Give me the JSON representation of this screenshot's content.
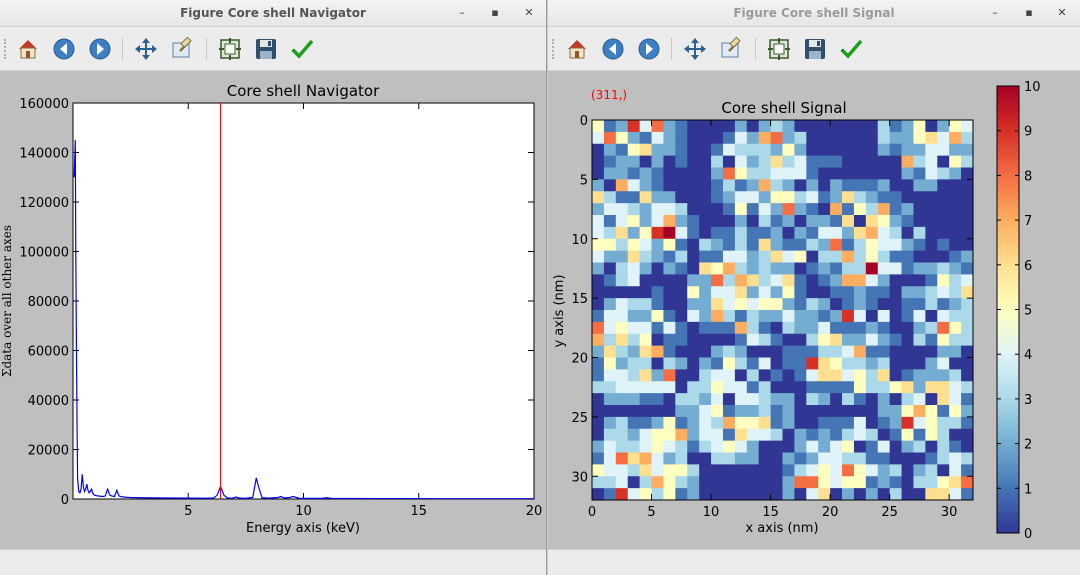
{
  "windows": {
    "navigator": {
      "title": "Figure Core shell Navigator",
      "controls": {
        "minimize": "–",
        "maximize": "▪",
        "close": "✕"
      }
    },
    "signal": {
      "title": "Figure Core shell Signal",
      "controls": {
        "minimize": "–",
        "maximize": "▪",
        "close": "✕"
      }
    }
  },
  "toolbar_icons": [
    "home-icon",
    "back-arrow-icon",
    "forward-arrow-icon",
    "pan-move-icon",
    "zoom-rect-icon",
    "configure-subplots-icon",
    "save-icon",
    "edit-check-icon"
  ],
  "colors": {
    "line": "#0000ff",
    "indicator": "#ff0000",
    "coord_text": "#ff0000"
  },
  "chart_data": [
    {
      "type": "line",
      "title": "Core shell Navigator",
      "xlabel": "Energy axis (keV)",
      "ylabel": "Σdata over all other axes",
      "xlim": [
        0,
        20
      ],
      "ylim": [
        0,
        160000
      ],
      "xticks": [
        5,
        10,
        15,
        20
      ],
      "yticks": [
        0,
        20000,
        40000,
        60000,
        80000,
        100000,
        120000,
        140000,
        160000
      ],
      "indicator_x": 6.4,
      "grid": false,
      "series": [
        {
          "x": [
            0.05,
            0.1,
            0.12,
            0.15,
            0.18,
            0.2,
            0.25,
            0.3,
            0.35,
            0.4,
            0.45,
            0.5,
            0.55,
            0.6,
            0.65,
            0.7,
            0.75,
            0.8,
            0.85,
            0.9,
            0.95,
            1.0,
            1.05,
            1.1,
            1.2,
            1.3,
            1.4,
            1.5,
            1.6,
            1.7,
            1.8,
            1.9,
            2.0,
            2.1,
            2.2,
            2.3,
            2.5,
            3.0,
            4.0,
            5.0,
            5.8,
            6.1,
            6.25,
            6.4,
            6.55,
            6.7,
            6.9,
            7.06,
            7.25,
            7.5,
            7.8,
            7.95,
            8.05,
            8.2,
            8.5,
            8.9,
            9.0,
            9.2,
            9.4,
            9.55,
            9.8,
            10.2,
            10.8,
            11.0,
            11.2,
            12.0,
            14.0,
            16.0,
            18.0,
            20.0
          ],
          "y": [
            130000,
            145000,
            100000,
            60000,
            25000,
            8000,
            3000,
            2500,
            4000,
            10000,
            5000,
            3000,
            4000,
            6000,
            3500,
            2500,
            3000,
            4000,
            2500,
            1800,
            1500,
            1400,
            1300,
            1200,
            1100,
            1000,
            1200,
            4000,
            1500,
            1200,
            1000,
            3500,
            1200,
            900,
            800,
            700,
            600,
            500,
            400,
            350,
            300,
            400,
            1500,
            5000,
            1500,
            400,
            300,
            800,
            300,
            300,
            600,
            8500,
            5000,
            500,
            350,
            600,
            1000,
            400,
            600,
            1000,
            300,
            250,
            250,
            500,
            250,
            200,
            150,
            120,
            100,
            90
          ]
        }
      ]
    },
    {
      "type": "heatmap",
      "title": "Core shell Signal",
      "xlabel": "x axis (nm)",
      "ylabel": "y axis (nm)",
      "xlim": [
        0,
        32
      ],
      "ylim": [
        32,
        0
      ],
      "xticks": [
        0,
        5,
        10,
        15,
        20,
        25,
        30
      ],
      "yticks": [
        0,
        5,
        10,
        15,
        20,
        25,
        30
      ],
      "colorbar": {
        "range": [
          0,
          10
        ],
        "ticks": [
          0,
          1,
          2,
          3,
          4,
          5,
          6,
          7,
          8,
          9,
          10
        ],
        "colormap": "RdYlBu_r"
      },
      "coordinate_readout": "(311,)",
      "particles": [
        {
          "cx": 4.0,
          "cy": 0.0,
          "r": 3.0
        },
        {
          "cx": 14.5,
          "cy": 4.5,
          "r": 3.7
        },
        {
          "cx": 28.0,
          "cy": 2.0,
          "r": 3.0
        },
        {
          "cx": 3.5,
          "cy": 9.0,
          "r": 4.0
        },
        {
          "cx": 22.5,
          "cy": 10.0,
          "r": 4.0
        },
        {
          "cx": 13.0,
          "cy": 14.0,
          "r": 4.0
        },
        {
          "cx": 30.5,
          "cy": 15.5,
          "r": 3.2
        },
        {
          "cx": 3.5,
          "cy": 19.5,
          "r": 3.7
        },
        {
          "cx": 21.0,
          "cy": 19.5,
          "r": 3.7
        },
        {
          "cx": 12.0,
          "cy": 24.0,
          "r": 3.6
        },
        {
          "cx": 28.5,
          "cy": 24.5,
          "r": 3.0
        },
        {
          "cx": 4.0,
          "cy": 29.5,
          "r": 3.8
        },
        {
          "cx": 21.0,
          "cy": 30.0,
          "r": 3.8
        },
        {
          "cx": 30.5,
          "cy": 30.5,
          "r": 2.5
        }
      ]
    }
  ]
}
